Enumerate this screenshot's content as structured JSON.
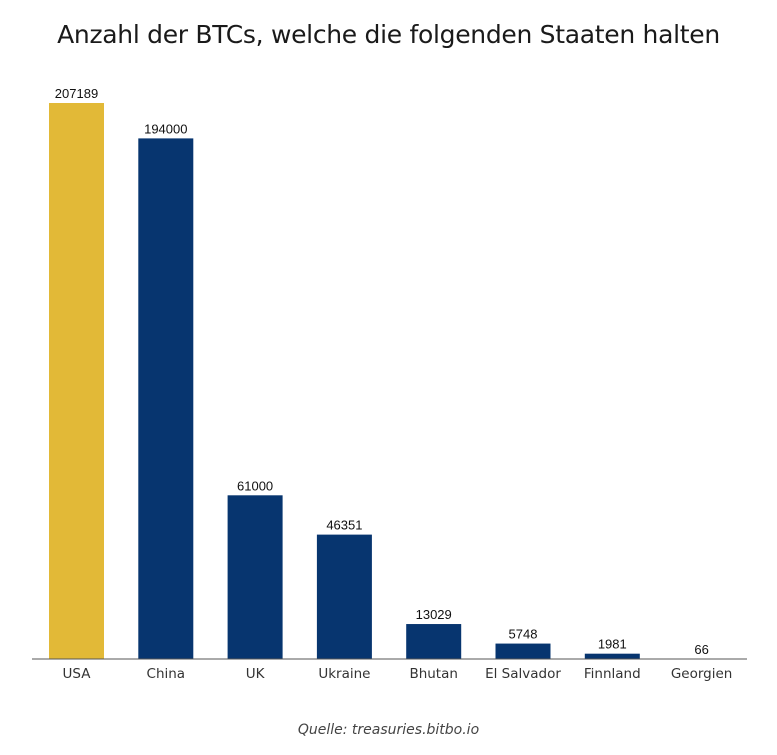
{
  "chart_data": {
    "type": "bar",
    "title": "Anzahl der BTCs, welche die folgenden Staaten halten",
    "xlabel": "",
    "ylabel": "",
    "categories": [
      "USA",
      "China",
      "UK",
      "Ukraine",
      "Bhutan",
      "El Salvador",
      "Finnland",
      "Georgien"
    ],
    "values": [
      207189,
      194000,
      61000,
      46351,
      13029,
      5748,
      1981,
      66
    ],
    "colors": [
      "#E2B937",
      "#07356F",
      "#07356F",
      "#07356F",
      "#07356F",
      "#07356F",
      "#07356F",
      "#07356F"
    ],
    "ylim": [
      0,
      207189
    ],
    "grid": false,
    "legend": "none",
    "source": "Quelle: treasuries.bitbo.io"
  }
}
